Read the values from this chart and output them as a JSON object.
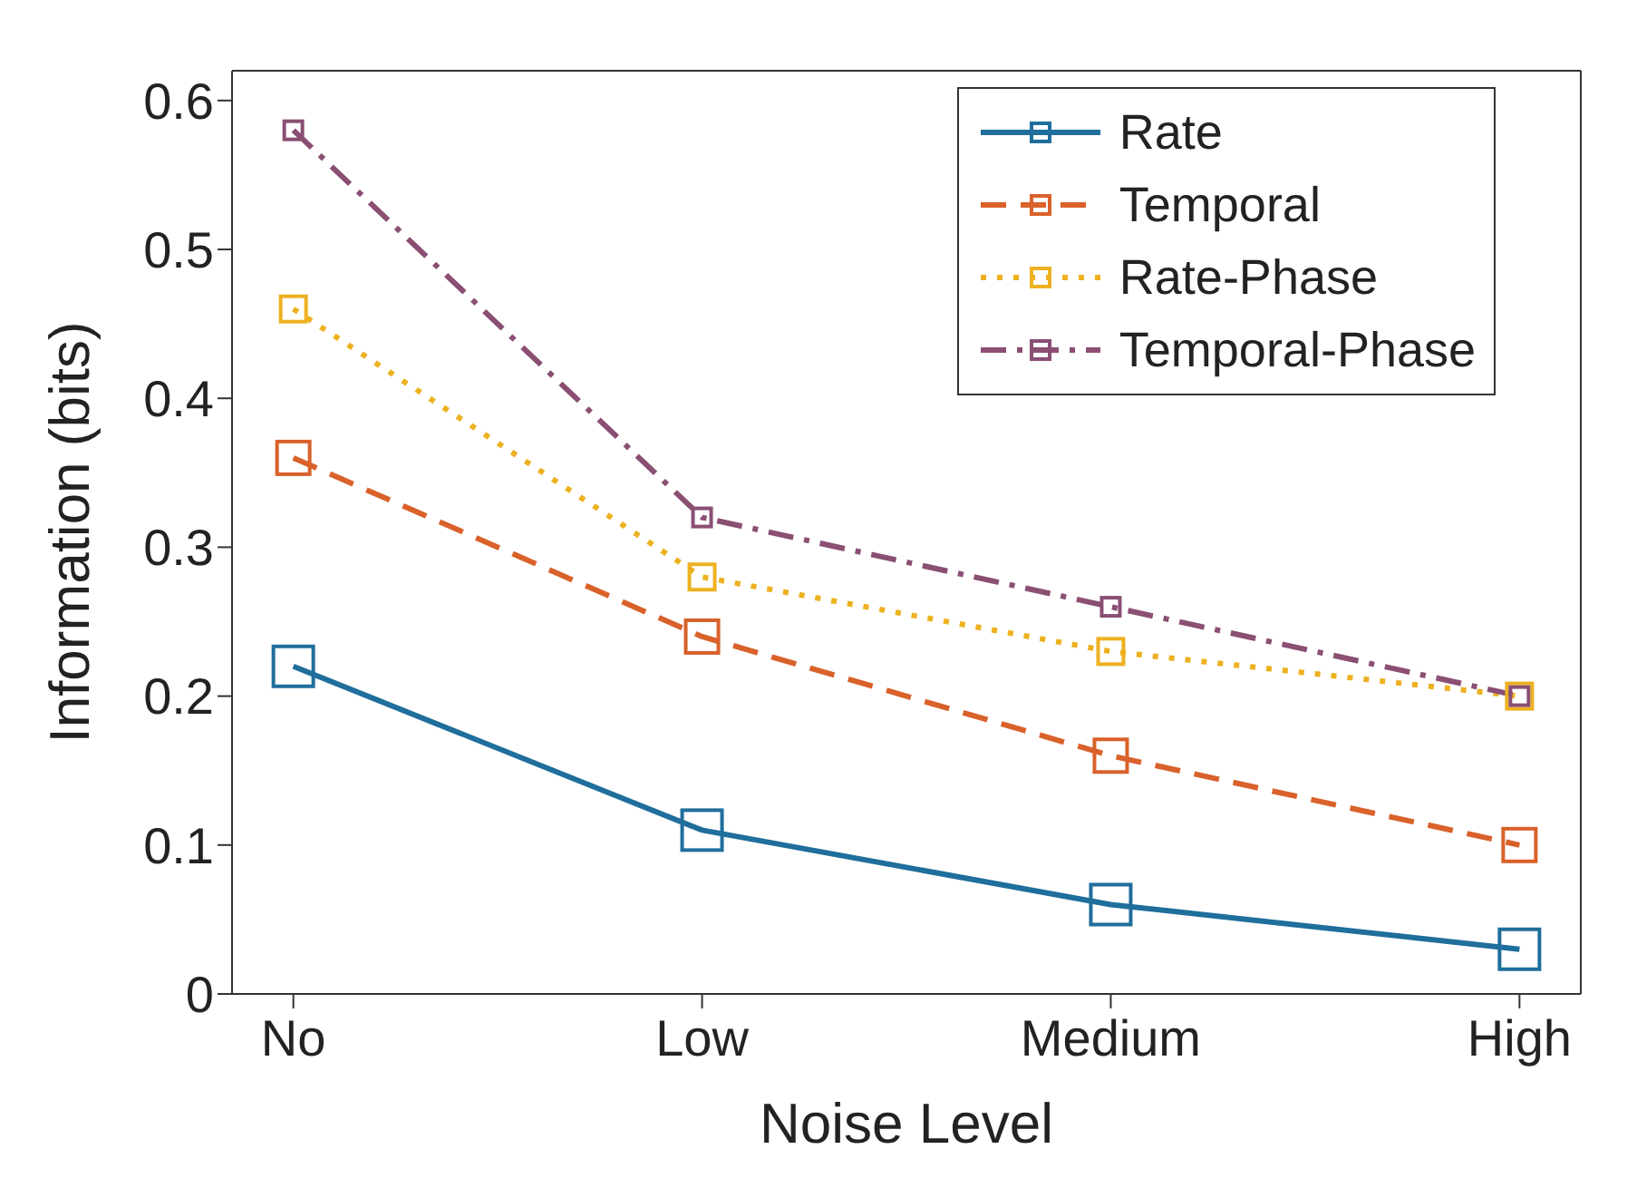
{
  "chart_data": {
    "type": "line",
    "xlabel": "Noise Level",
    "ylabel": "Information (bits)",
    "categories": [
      "No",
      "Low",
      "Medium",
      "High"
    ],
    "series": [
      {
        "name": "Rate",
        "color": "#1f6e9c",
        "values": [
          0.22,
          0.11,
          0.06,
          0.03
        ],
        "line_style": "solid"
      },
      {
        "name": "Temporal",
        "color": "#d9612a",
        "values": [
          0.36,
          0.24,
          0.16,
          0.1
        ],
        "line_style": "dashed"
      },
      {
        "name": "Rate-Phase",
        "color": "#edb120",
        "values": [
          0.46,
          0.28,
          0.23,
          0.2
        ],
        "line_style": "dotted"
      },
      {
        "name": "Temporal-Phase",
        "color": "#8a4f73",
        "values": [
          0.58,
          0.32,
          0.26,
          0.2
        ],
        "line_style": "dashdot"
      }
    ],
    "ylim": [
      0,
      0.62
    ],
    "yticks": [
      0,
      0.1,
      0.2,
      0.3,
      0.4,
      0.5,
      0.6
    ],
    "grid": false,
    "legend": "top right",
    "marker": "square"
  }
}
